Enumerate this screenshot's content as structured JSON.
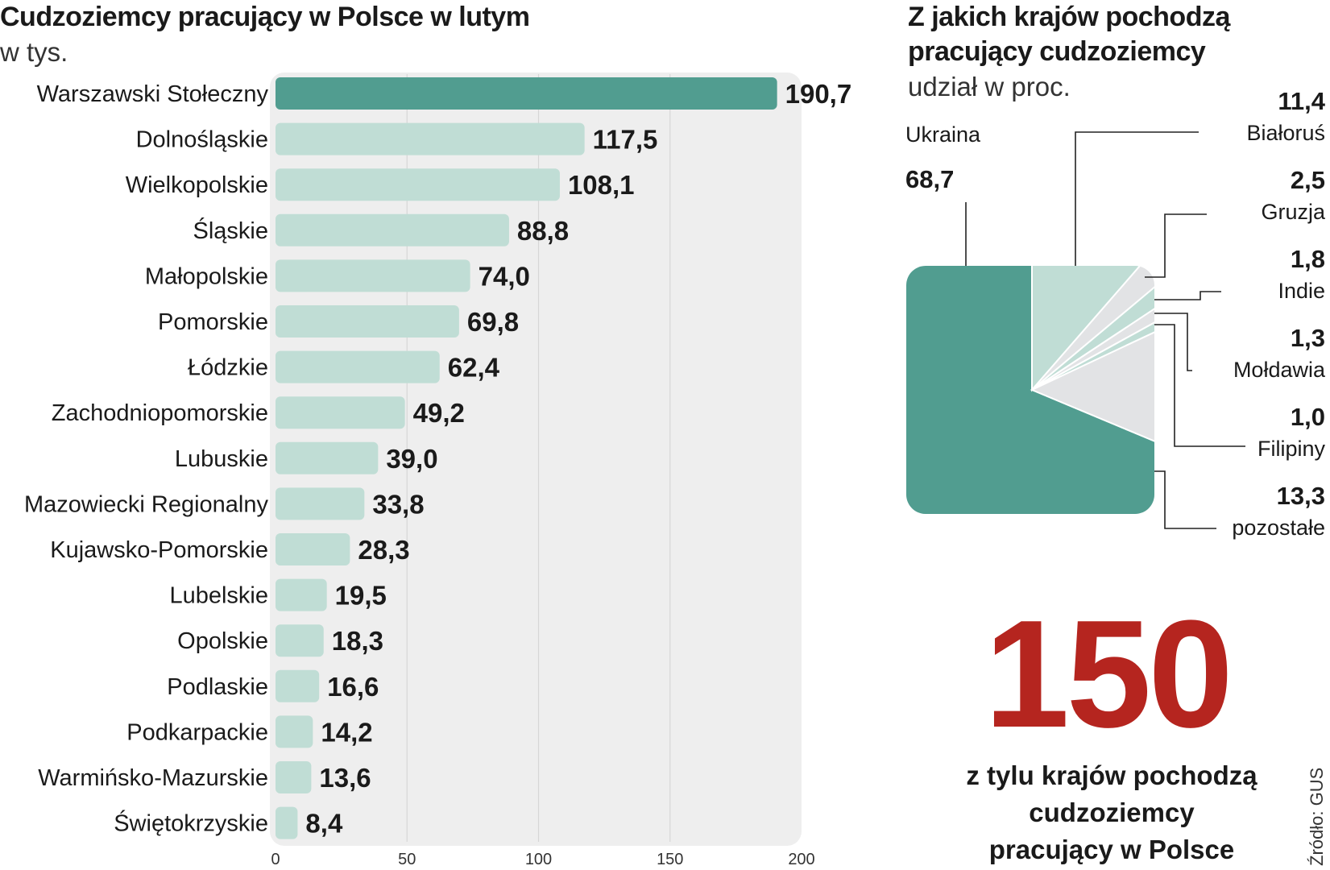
{
  "left": {
    "title": "Cudzoziemcy pracujący w Polsce w lutym",
    "subtitle": "w tys."
  },
  "right": {
    "title_line1": "Z jakich krajów pochodzą",
    "title_line2": "pracujący cudzoziemcy",
    "subtitle": "udział w proc."
  },
  "highlight": {
    "number": "150",
    "caption_line1": "z tylu krajów pochodzą",
    "caption_line2": "cudzoziemcy",
    "caption_line3": "pracujący w Polsce"
  },
  "source": "Źródło: GUS",
  "colors": {
    "bar_highlight": "#519d90",
    "bar": "#c0ddd5",
    "panel": "#eeeeee",
    "accent_number": "#b5251f",
    "pie_ukraine": "#519d90",
    "pie_bialorus": "#c0ddd5",
    "pie_other": "#e2e3e5"
  },
  "chart_data": [
    {
      "type": "bar",
      "orientation": "horizontal",
      "title": "Cudzoziemcy pracujący w Polsce w lutym",
      "unit": "w tys.",
      "xlim": [
        0,
        200
      ],
      "xticks": [
        0,
        50,
        100,
        150,
        200
      ],
      "grid": true,
      "categories": [
        "Warszawski Stołeczny",
        "Dolnośląskie",
        "Wielkopolskie",
        "Śląskie",
        "Małopolskie",
        "Pomorskie",
        "Łódzkie",
        "Zachodniopomorskie",
        "Lubuskie",
        "Mazowiecki Regionalny",
        "Kujawsko-Pomorskie",
        "Lubelskie",
        "Opolskie",
        "Podlaskie",
        "Podkarpackie",
        "Warmińsko-Mazurskie",
        "Świętokrzyskie"
      ],
      "values": [
        190.7,
        117.5,
        108.1,
        88.8,
        74.0,
        69.8,
        62.4,
        49.2,
        39.0,
        33.8,
        28.3,
        19.5,
        18.3,
        16.6,
        14.2,
        13.6,
        8.4
      ],
      "value_labels": [
        "190,7",
        "117,5",
        "108,1",
        "88,8",
        "74,0",
        "69,8",
        "62,4",
        "49,2",
        "39,0",
        "33,8",
        "28,3",
        "19,5",
        "18,3",
        "16,6",
        "14,2",
        "13,6",
        "8,4"
      ],
      "highlight_index": 0
    },
    {
      "type": "pie",
      "title": "Z jakich krajów pochodzą pracujący cudzoziemcy",
      "unit": "udział w proc.",
      "labels": [
        "Ukraina",
        "Białoruś",
        "Gruzja",
        "Indie",
        "Mołdawia",
        "Filipiny",
        "pozostałe"
      ],
      "values": [
        68.7,
        11.4,
        2.5,
        1.8,
        1.3,
        1.0,
        13.3
      ],
      "value_labels": [
        "68,7",
        "11,4",
        "2,5",
        "1,8",
        "1,3",
        "1,0",
        "13,3"
      ]
    }
  ]
}
